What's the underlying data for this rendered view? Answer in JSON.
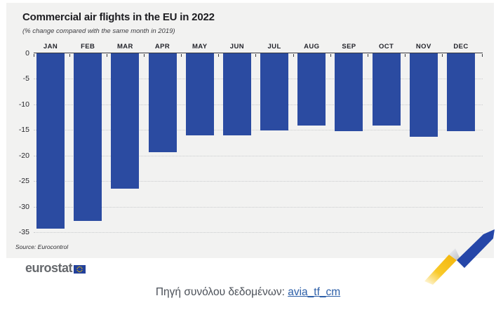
{
  "header": {
    "title": "Commercial air flights in the EU in 2022",
    "subtitle": "(% change compared with the same month in 2019)"
  },
  "chart_data": {
    "type": "bar",
    "title": "Commercial air flights in the EU in 2022",
    "subtitle": "(% change compared with the same month in 2019)",
    "categories": [
      "JAN",
      "FEB",
      "MAR",
      "APR",
      "MAY",
      "JUN",
      "JUL",
      "AUG",
      "SEP",
      "OCT",
      "NOV",
      "DEC"
    ],
    "values": [
      -34.3,
      -32.8,
      -26.5,
      -19.4,
      -16.0,
      -16.1,
      -15.1,
      -14.1,
      -15.3,
      -14.2,
      -16.4,
      -15.2
    ],
    "xlabel": "",
    "ylabel": "",
    "ylim": [
      -35,
      0
    ],
    "yticks": [
      0,
      -5,
      -10,
      -15,
      -20,
      -25,
      -30,
      -35
    ],
    "grid": "horizontal-dotted",
    "legend": "none",
    "bar_color": "#2b4ba1",
    "source": "Source: Eurocontrol"
  },
  "colors": {
    "bar": "#2b4ba1",
    "card_background": "#f2f2f1",
    "axis": "#3a3b40",
    "gridline": "#c9cbcd",
    "ribbon_blue": "#2546a8",
    "ribbon_yellow": "#f6bd10",
    "link": "#2d5fa8"
  },
  "footer": {
    "logo_text": "eurostat",
    "eu_flag_icon": "eu-flag"
  },
  "caption": {
    "label": "Πηγή συνόλου δεδομένων:",
    "link_text": "avia_tf_cm"
  }
}
